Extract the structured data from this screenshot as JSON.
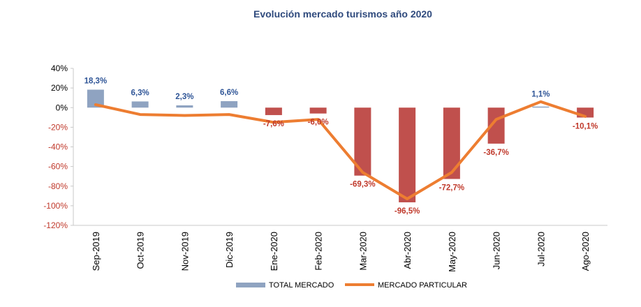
{
  "chart_data": {
    "type": "bar",
    "title": "Evolución mercado turismos año 2020",
    "categories": [
      "Sep-2019",
      "Oct-2019",
      "Nov-2019",
      "Dic-2019",
      "Ene-2020",
      "Feb-2020",
      "Mar-2020",
      "Abr-2020",
      "May-2020",
      "Jun-2020",
      "Jul-2020",
      "Ago-2020"
    ],
    "series": [
      {
        "name": "TOTAL MERCADO",
        "type": "bar",
        "values": [
          18.3,
          6.3,
          2.3,
          6.6,
          -7.6,
          -6.0,
          -69.3,
          -96.5,
          -72.7,
          -36.7,
          1.1,
          -10.1
        ],
        "labels": [
          "18,3%",
          "6,3%",
          "2,3%",
          "6,6%",
          "-7,6%",
          "-6,0%",
          "-69,3%",
          "-96,5%",
          "-72,7%",
          "-36,7%",
          "1,1%",
          "-10,1%"
        ]
      },
      {
        "name": "MERCADO PARTICULAR",
        "type": "line",
        "values": [
          3,
          -7,
          -8,
          -7,
          -15,
          -12,
          -66,
          -93,
          -66,
          -12,
          6,
          -9
        ]
      }
    ],
    "yticks": [
      "40%",
      "20%",
      "0%",
      "-20%",
      "-40%",
      "-60%",
      "-80%",
      "-100%",
      "-120%"
    ],
    "ylim": [
      -120,
      40
    ],
    "legend_position": "bottom",
    "colors": {
      "positive_bar": "#8fa3c1",
      "negative_bar": "#c0504d",
      "line": "#ed7d31",
      "positive_label": "#2f5597",
      "negative_label": "#c0392b",
      "title": "#2f4a7d"
    }
  }
}
